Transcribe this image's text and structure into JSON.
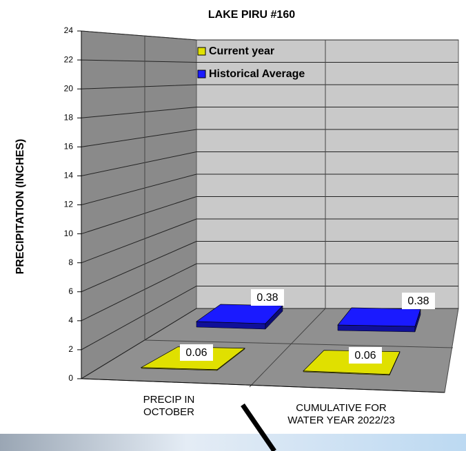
{
  "chart_data": {
    "type": "bar3d",
    "title": "LAKE PIRU #160",
    "y_label": "PRECIPITATION  (INCHES)",
    "categories": [
      "PRECIP IN OCTOBER",
      "CUMULATIVE FOR WATER YEAR 2022/23"
    ],
    "series": [
      {
        "name": "Current year",
        "color": "#e0e000",
        "values": [
          0.06,
          0.06
        ]
      },
      {
        "name": "Historical Average",
        "color": "#1a1aff",
        "values": [
          0.38,
          0.38
        ]
      }
    ],
    "ylim": [
      0,
      24
    ],
    "yticks": [
      0,
      2,
      4,
      6,
      8,
      10,
      12,
      14,
      16,
      18,
      20,
      22,
      24
    ],
    "grid": true,
    "legend": "top"
  }
}
